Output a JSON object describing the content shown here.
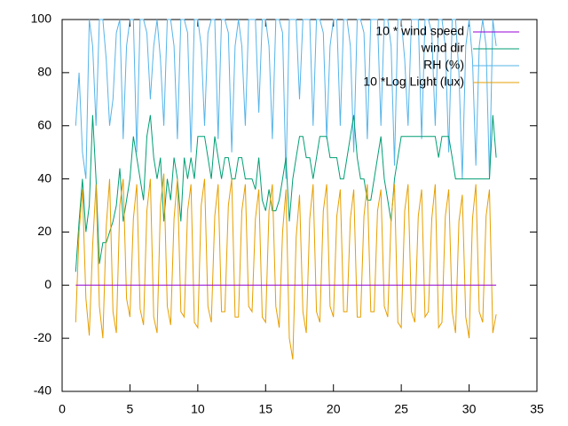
{
  "chart_data": {
    "type": "line",
    "x": [
      1,
      1.25,
      1.5,
      1.75,
      2,
      2.25,
      2.5,
      2.75,
      3,
      3.25,
      3.5,
      3.75,
      4,
      4.25,
      4.5,
      4.75,
      5,
      5.25,
      5.5,
      5.75,
      6,
      6.25,
      6.5,
      6.75,
      7,
      7.25,
      7.5,
      7.75,
      8,
      8.25,
      8.5,
      8.75,
      9,
      9.25,
      9.5,
      9.75,
      10,
      10.25,
      10.5,
      10.75,
      11,
      11.25,
      11.5,
      11.75,
      12,
      12.25,
      12.5,
      12.75,
      13,
      13.25,
      13.5,
      13.75,
      14,
      14.25,
      14.5,
      14.75,
      15,
      15.25,
      15.5,
      15.75,
      16,
      16.25,
      16.5,
      16.75,
      17,
      17.25,
      17.5,
      17.75,
      18,
      18.25,
      18.5,
      18.75,
      19,
      19.25,
      19.5,
      19.75,
      20,
      20.25,
      20.5,
      20.75,
      21,
      21.25,
      21.5,
      21.75,
      22,
      22.25,
      22.5,
      22.75,
      23,
      23.25,
      23.5,
      23.75,
      24,
      24.25,
      24.5,
      24.75,
      25,
      25.25,
      25.5,
      25.75,
      26,
      26.25,
      26.5,
      26.75,
      27,
      27.25,
      27.5,
      27.75,
      28,
      28.25,
      28.5,
      28.75,
      29,
      29.25,
      29.5,
      29.75,
      30,
      30.25,
      30.5,
      30.75,
      31,
      31.25,
      31.5,
      31.75,
      32
    ],
    "series": [
      {
        "name": "10 * wind speed",
        "color": "#9400d3",
        "values": [
          0,
          0,
          0,
          0,
          0,
          0,
          0,
          0,
          0,
          0,
          0,
          0,
          0,
          0,
          0,
          0,
          0,
          0,
          0,
          0,
          0,
          0,
          0,
          0,
          0,
          0,
          0,
          0,
          0,
          0,
          0,
          0,
          0,
          0,
          0,
          0,
          0,
          0,
          0,
          0,
          0,
          0,
          0,
          0,
          0,
          0,
          0,
          0,
          0,
          0,
          0,
          0,
          0,
          0,
          0,
          0,
          0,
          0,
          0,
          0,
          0,
          0,
          0,
          0,
          0,
          0,
          0,
          0,
          0,
          0,
          0,
          0,
          0,
          0,
          0,
          0,
          0,
          0,
          0,
          0,
          0,
          0,
          0,
          0,
          0,
          0,
          0,
          0,
          0,
          0,
          0,
          0,
          0,
          0,
          0,
          0,
          0,
          0,
          0,
          0,
          0,
          0,
          0,
          0,
          0,
          0,
          0,
          0,
          0,
          0,
          0,
          0,
          0,
          0,
          0,
          0,
          0,
          0,
          0,
          0,
          0,
          0,
          0,
          0,
          0
        ]
      },
      {
        "name": "wind dir",
        "color": "#009e73",
        "values": [
          5,
          24,
          40,
          20,
          30,
          64,
          40,
          8,
          16,
          16,
          20,
          24,
          30,
          44,
          24,
          32,
          40,
          56,
          48,
          40,
          32,
          56,
          64,
          48,
          40,
          48,
          24,
          40,
          32,
          48,
          40,
          24,
          48,
          40,
          48,
          40,
          56,
          56,
          56,
          48,
          40,
          56,
          48,
          40,
          48,
          48,
          40,
          40,
          48,
          48,
          40,
          40,
          40,
          36,
          48,
          32,
          28,
          36,
          28,
          28,
          32,
          40,
          48,
          24,
          40,
          48,
          56,
          56,
          48,
          48,
          40,
          48,
          56,
          56,
          56,
          48,
          48,
          48,
          40,
          40,
          48,
          56,
          64,
          48,
          40,
          40,
          32,
          32,
          40,
          48,
          56,
          40,
          32,
          24,
          40,
          48,
          56,
          56,
          56,
          56,
          56,
          56,
          56,
          56,
          56,
          56,
          56,
          48,
          56,
          56,
          56,
          48,
          40,
          40,
          40,
          40,
          40,
          40,
          40,
          40,
          40,
          40,
          40,
          64,
          48
        ]
      },
      {
        "name": "RH (%)",
        "color": "#56b4e9",
        "values": [
          60,
          80,
          50,
          40,
          100,
          90,
          60,
          100,
          100,
          85,
          60,
          70,
          95,
          100,
          55,
          90,
          100,
          100,
          50,
          100,
          100,
          95,
          70,
          90,
          100,
          85,
          60,
          100,
          100,
          90,
          55,
          100,
          100,
          95,
          50,
          100,
          100,
          90,
          60,
          95,
          100,
          100,
          55,
          100,
          100,
          95,
          50,
          90,
          100,
          90,
          60,
          100,
          100,
          100,
          65,
          100,
          100,
          90,
          55,
          100,
          100,
          95,
          40,
          100,
          100,
          100,
          70,
          100,
          100,
          100,
          60,
          100,
          100,
          95,
          55,
          90,
          100,
          100,
          60,
          100,
          100,
          90,
          50,
          100,
          100,
          95,
          55,
          100,
          100,
          100,
          60,
          100,
          100,
          90,
          45,
          100,
          100,
          85,
          60,
          100,
          100,
          100,
          55,
          100,
          100,
          95,
          60,
          100,
          100,
          90,
          50,
          100,
          100,
          80,
          40,
          90,
          100,
          85,
          45,
          90,
          100,
          90,
          40,
          100,
          90
        ]
      },
      {
        "name": "10 *Log Light (lux)",
        "color": "#e69f00",
        "values": [
          -14,
          20,
          36,
          -5,
          -19,
          15,
          38,
          -8,
          -20,
          22,
          40,
          -10,
          -18,
          30,
          40,
          -5,
          -12,
          25,
          38,
          -9,
          -15,
          28,
          40,
          -12,
          -18,
          30,
          42,
          -8,
          -15,
          25,
          40,
          -10,
          -12,
          28,
          38,
          -14,
          -16,
          30,
          40,
          -8,
          -14,
          26,
          38,
          -10,
          -10,
          30,
          40,
          -12,
          -12,
          28,
          38,
          -8,
          -10,
          25,
          36,
          -12,
          -14,
          28,
          38,
          -8,
          -16,
          20,
          36,
          -20,
          -28,
          18,
          34,
          -10,
          -18,
          25,
          38,
          -10,
          -14,
          28,
          38,
          -8,
          -12,
          26,
          36,
          -10,
          -10,
          25,
          36,
          -12,
          -12,
          26,
          38,
          -10,
          -10,
          28,
          36,
          -8,
          -12,
          25,
          38,
          -14,
          -16,
          28,
          38,
          -10,
          -14,
          26,
          36,
          -12,
          -10,
          25,
          38,
          -16,
          -14,
          26,
          36,
          -10,
          -18,
          24,
          34,
          -12,
          -20,
          25,
          38,
          -10,
          -14,
          26,
          36,
          -18,
          -11
        ]
      }
    ],
    "xlim": [
      0,
      35
    ],
    "xticks": [
      0,
      5,
      10,
      15,
      20,
      25,
      30,
      35
    ],
    "ylim": [
      -40,
      100
    ],
    "yticks": [
      -40,
      -20,
      0,
      20,
      40,
      60,
      80,
      100
    ],
    "legend": "top-right"
  }
}
